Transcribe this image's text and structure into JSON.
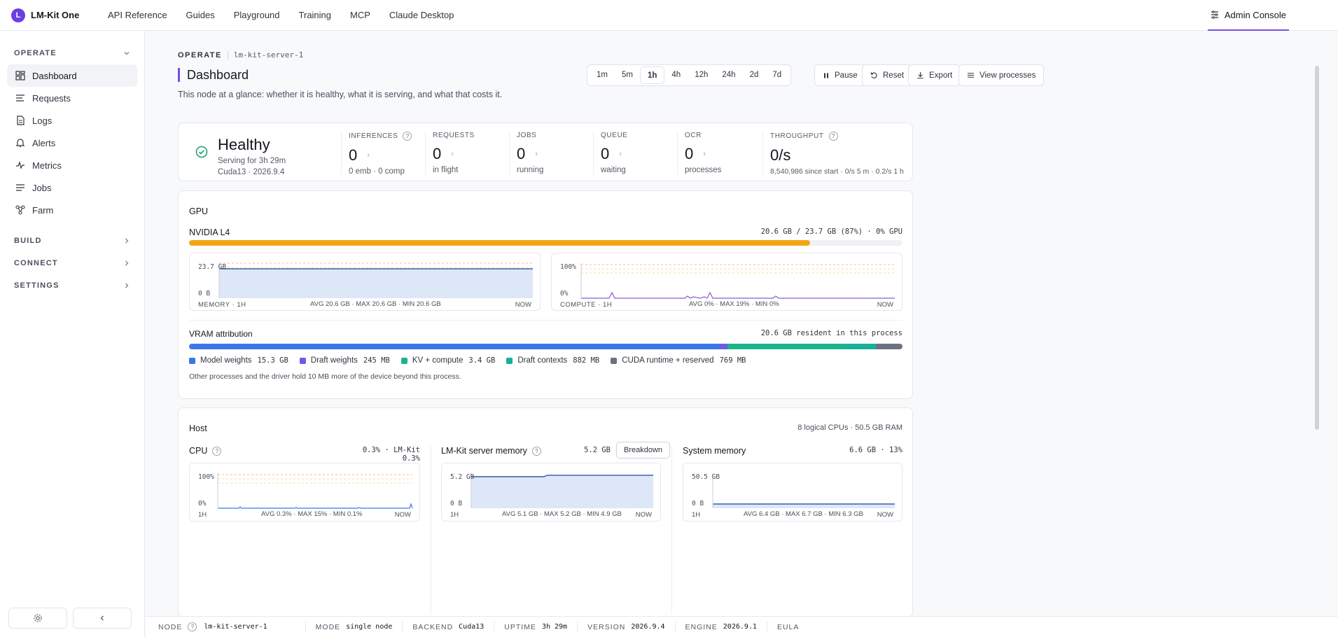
{
  "brand": {
    "logo": "L",
    "name": "LM-Kit One"
  },
  "nav": [
    "API Reference",
    "Guides",
    "Playground",
    "Training",
    "MCP",
    "Claude Desktop"
  ],
  "admin_label": "Admin Console",
  "sidebar": {
    "operate": "OPERATE",
    "items": [
      {
        "label": "Dashboard",
        "icon": "dashboard-icon"
      },
      {
        "label": "Requests",
        "icon": "list-icon"
      },
      {
        "label": "Logs",
        "icon": "document-icon"
      },
      {
        "label": "Alerts",
        "icon": "bell-icon"
      },
      {
        "label": "Metrics",
        "icon": "pulse-icon"
      },
      {
        "label": "Jobs",
        "icon": "jobs-icon"
      },
      {
        "label": "Farm",
        "icon": "network-icon"
      }
    ],
    "build": "BUILD",
    "connect": "CONNECT",
    "settings": "SETTINGS"
  },
  "breadcrumb": {
    "section": "OPERATE",
    "node": "lm-kit-server-1"
  },
  "page": {
    "title": "Dashboard",
    "subtitle": "This node at a glance: whether it is healthy, what it is serving, and what that costs it."
  },
  "ranges": [
    "1m",
    "5m",
    "1h",
    "4h",
    "12h",
    "24h",
    "2d",
    "7d"
  ],
  "selected_range": "1h",
  "toolbar": {
    "pause": "Pause",
    "reset": "Reset",
    "export": "Export",
    "view_processes": "View processes"
  },
  "status": {
    "title": "Healthy",
    "uptime": "Serving for 3h 29m",
    "build": "Cuda13 · 2026.9.4",
    "kpis": [
      {
        "label": "INFERENCES",
        "value": "0",
        "sub": "0 emb · 0 comp",
        "help": "?"
      },
      {
        "label": "REQUESTS",
        "value": "0",
        "sub": "in flight"
      },
      {
        "label": "JOBS",
        "value": "0",
        "sub": "running"
      },
      {
        "label": "QUEUE",
        "value": "0",
        "sub": "waiting"
      },
      {
        "label": "OCR",
        "value": "0",
        "sub": "processes"
      }
    ],
    "throughput": {
      "label": "THROUGHPUT",
      "value": "0/s",
      "sub": "8,540,986 since start · 0/s 5 m · 0.2/s 1 h",
      "help": "?"
    }
  },
  "gpu": {
    "section": "GPU",
    "name": "NVIDIA L4",
    "summary": "20.6 GB / 23.7 GB (87%) · 0% GPU",
    "memory_pct": 87,
    "memory_chart": {
      "top": "23.7 GB",
      "bottom": "0 B",
      "label": "MEMORY · 1H",
      "stats": "AVG 20.6 GB · MAX 20.6 GB · MIN 20.6 GB",
      "now": "NOW"
    },
    "compute_chart": {
      "top": "100%",
      "bottom": "0%",
      "label": "COMPUTE · 1H",
      "stats": "AVG 0% · MAX 19% · MIN 0%",
      "now": "NOW"
    },
    "vram": {
      "title": "VRAM attribution",
      "resident": "20.6 GB resident in this process",
      "segments": [
        {
          "label": "Model weights",
          "value": "15.3 GB",
          "color": "#3b78e7",
          "gb": 15.3
        },
        {
          "label": "Draft weights",
          "value": "245 MB",
          "color": "#6a5ce6",
          "gb": 0.245
        },
        {
          "label": "KV + compute",
          "value": "3.4 GB",
          "color": "#1db38a",
          "gb": 3.4
        },
        {
          "label": "Draft contexts",
          "value": "882 MB",
          "color": "#17b09a",
          "gb": 0.882
        },
        {
          "label": "CUDA runtime + reserved",
          "value": "769 MB",
          "color": "#6b7280",
          "gb": 0.769
        }
      ],
      "note": "Other processes and the driver hold 10 MB more of the device beyond this process."
    }
  },
  "host": {
    "section": "Host",
    "summary": "8 logical CPUs · 50.5 GB RAM",
    "cpu": {
      "title": "CPU",
      "help": "?",
      "value": "0.3% · LM-Kit 0.3%",
      "top": "100%",
      "bottom": "0%",
      "label": "1H",
      "stats": "AVG 0.3% · MAX 15% · MIN 0.1%",
      "now": "NOW"
    },
    "server_mem": {
      "title": "LM-Kit server memory",
      "help": "?",
      "value": "5.2 GB",
      "button": "Breakdown",
      "top": "5.2 GB",
      "bottom": "0 B",
      "label": "1H",
      "stats": "AVG 5.1 GB · MAX 5.2 GB · MIN 4.9 GB",
      "now": "NOW"
    },
    "sys_mem": {
      "title": "System memory",
      "value": "6.6 GB · 13%",
      "top": "50.5 GB",
      "bottom": "0 B",
      "label": "1H",
      "stats": "AVG 6.4 GB · MAX 6.7 GB · MIN 6.3 GB",
      "now": "NOW"
    }
  },
  "footer": [
    {
      "key": "NODE",
      "help": "?",
      "value": "lm-kit-server-1"
    },
    {
      "key": "MODE",
      "value": "single node"
    },
    {
      "key": "BACKEND",
      "value": "Cuda13"
    },
    {
      "key": "UPTIME",
      "value": "3h 29m"
    },
    {
      "key": "VERSION",
      "value": "2026.9.4"
    },
    {
      "key": "ENGINE",
      "value": "2026.9.1"
    },
    {
      "key": "EULA",
      "value": ""
    }
  ]
}
